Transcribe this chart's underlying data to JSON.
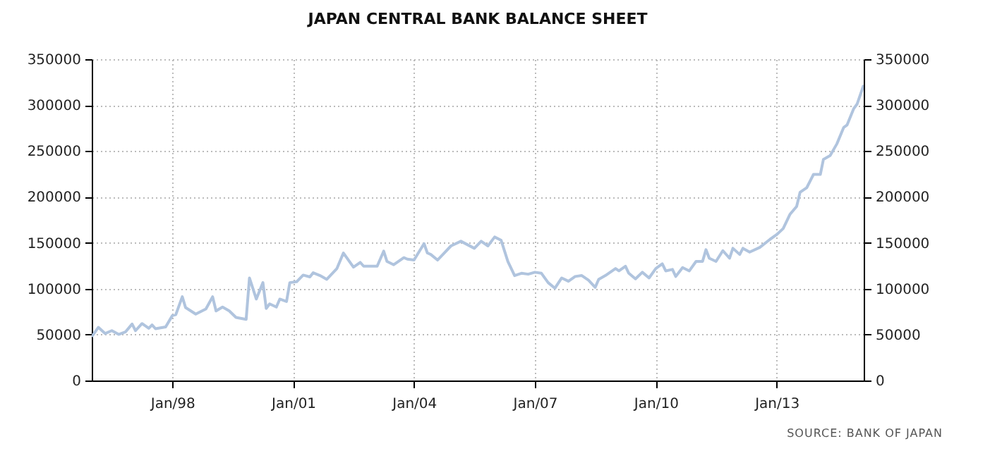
{
  "chart_data": {
    "type": "line",
    "title": "JAPAN CENTRAL BANK BALANCE SHEET",
    "annotations": [
      "SOURCE: BANK OF JAPAN"
    ],
    "x": [
      "1996-01",
      "1996-03",
      "1996-05",
      "1996-07",
      "1996-09",
      "1996-11",
      "1997-01",
      "1997-02",
      "1997-04",
      "1997-06",
      "1997-07",
      "1997-08",
      "1997-11",
      "1998-01",
      "1998-02",
      "1998-04",
      "1998-05",
      "1998-08",
      "1998-11",
      "1999-01",
      "1999-02",
      "1999-04",
      "1999-06",
      "1999-08",
      "1999-11",
      "1999-12",
      "2000-02",
      "2000-04",
      "2000-05",
      "2000-06",
      "2000-08",
      "2000-09",
      "2000-11",
      "2000-12",
      "2001-02",
      "2001-04",
      "2001-06",
      "2001-07",
      "2001-09",
      "2001-11",
      "2002-02",
      "2002-04",
      "2002-07",
      "2002-09",
      "2002-10",
      "2003-02",
      "2003-04",
      "2003-05",
      "2003-07",
      "2003-10",
      "2003-11",
      "2004-01",
      "2004-04",
      "2004-05",
      "2004-06",
      "2004-08",
      "2004-10",
      "2004-12",
      "2005-03",
      "2005-07",
      "2005-09",
      "2005-11",
      "2006-01",
      "2006-03",
      "2006-05",
      "2006-07",
      "2006-09",
      "2006-11",
      "2007-01",
      "2007-03",
      "2007-05",
      "2007-07",
      "2007-09",
      "2007-11",
      "2008-01",
      "2008-03",
      "2008-05",
      "2008-07",
      "2008-08",
      "2008-10",
      "2009-01",
      "2009-02",
      "2009-04",
      "2009-05",
      "2009-07",
      "2009-09",
      "2009-11",
      "2010-01",
      "2010-03",
      "2010-04",
      "2010-06",
      "2010-07",
      "2010-09",
      "2010-11",
      "2011-01",
      "2011-03",
      "2011-04",
      "2011-05",
      "2011-07",
      "2011-09",
      "2011-11",
      "2011-12",
      "2012-02",
      "2012-03",
      "2012-05",
      "2012-08",
      "2012-11",
      "2013-01",
      "2013-03",
      "2013-05",
      "2013-07",
      "2013-08",
      "2013-10",
      "2013-12",
      "2014-02",
      "2014-03",
      "2014-05",
      "2014-07",
      "2014-09",
      "2014-10",
      "2014-12",
      "2015-01",
      "2015-03"
    ],
    "series": [
      {
        "color": "#b0c4de",
        "values": [
          47700,
          57900,
          51200,
          54300,
          50200,
          52800,
          61500,
          54300,
          62000,
          56900,
          60500,
          56400,
          58400,
          70700,
          71700,
          91200,
          79400,
          72300,
          77900,
          91200,
          75800,
          80000,
          75800,
          68700,
          66600,
          111700,
          88700,
          106600,
          78400,
          83500,
          80000,
          88700,
          86100,
          106600,
          107600,
          114800,
          112800,
          117400,
          114300,
          110200,
          122000,
          138900,
          123500,
          128600,
          124500,
          124500,
          140900,
          129700,
          126100,
          133800,
          132200,
          131200,
          149100,
          138900,
          137300,
          131200,
          138900,
          146600,
          151700,
          144000,
          151700,
          146600,
          156300,
          152700,
          129700,
          114300,
          116800,
          115800,
          117900,
          116800,
          106600,
          100500,
          111700,
          108100,
          113300,
          114300,
          109200,
          101500,
          110200,
          114300,
          122000,
          119400,
          124500,
          116800,
          110700,
          117900,
          111700,
          122000,
          127100,
          119400,
          121000,
          113300,
          123000,
          119400,
          129700,
          129700,
          142500,
          133200,
          129700,
          141400,
          133200,
          144000,
          137300,
          144000,
          139900,
          145000,
          153700,
          158900,
          165500,
          180900,
          189600,
          205000,
          210100,
          224500,
          224500,
          240900,
          245000,
          257800,
          275700,
          278300,
          296200,
          301300,
          321800
        ]
      }
    ],
    "xlim": [
      "1996-01",
      "2015-03"
    ],
    "xticks": [
      {
        "value": "1998-01",
        "label": "Jan/98"
      },
      {
        "value": "2001-01",
        "label": "Jan/01"
      },
      {
        "value": "2004-01",
        "label": "Jan/04"
      },
      {
        "value": "2007-01",
        "label": "Jan/07"
      },
      {
        "value": "2010-01",
        "label": "Jan/10"
      },
      {
        "value": "2013-01",
        "label": "Jan/13"
      }
    ],
    "ylim": [
      0,
      350000
    ],
    "yticks": [
      0,
      50000,
      100000,
      150000,
      200000,
      250000,
      300000,
      350000
    ],
    "y2lim": [
      0,
      350000
    ],
    "y2ticks": [
      0,
      50000,
      100000,
      150000,
      200000,
      250000,
      300000,
      350000
    ],
    "grid": true,
    "line_style": "solid"
  }
}
